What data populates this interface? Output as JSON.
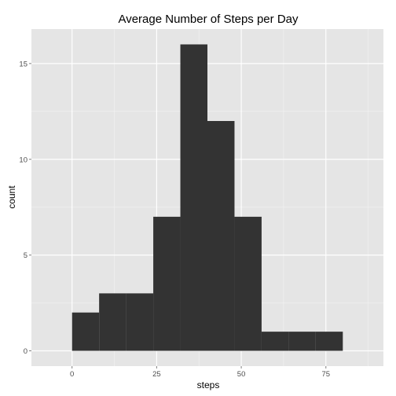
{
  "chart_data": {
    "type": "bar",
    "title": "Average Number of Steps per Day",
    "xlabel": "steps",
    "ylabel": "count",
    "bins": [
      {
        "x0": 0,
        "x1": 8,
        "count": 2
      },
      {
        "x0": 8,
        "x1": 16,
        "count": 3
      },
      {
        "x0": 16,
        "x1": 24,
        "count": 3
      },
      {
        "x0": 24,
        "x1": 32,
        "count": 7
      },
      {
        "x0": 32,
        "x1": 40,
        "count": 16
      },
      {
        "x0": 40,
        "x1": 48,
        "count": 12
      },
      {
        "x0": 48,
        "x1": 56,
        "count": 7
      },
      {
        "x0": 56,
        "x1": 64,
        "count": 1
      },
      {
        "x0": 64,
        "x1": 72,
        "count": 1
      },
      {
        "x0": 72,
        "x1": 80,
        "count": 1
      }
    ],
    "xlim": [
      -12,
      92
    ],
    "ylim": [
      -0.8,
      16.8
    ],
    "xticks": [
      0,
      25,
      50,
      75
    ],
    "yticks": [
      0,
      5,
      10,
      15
    ],
    "grid": true,
    "colors": {
      "bar": "#333333",
      "panel": "#e5e5e5",
      "grid_major": "#ffffff",
      "grid_minor": "#f2f2f2"
    }
  }
}
